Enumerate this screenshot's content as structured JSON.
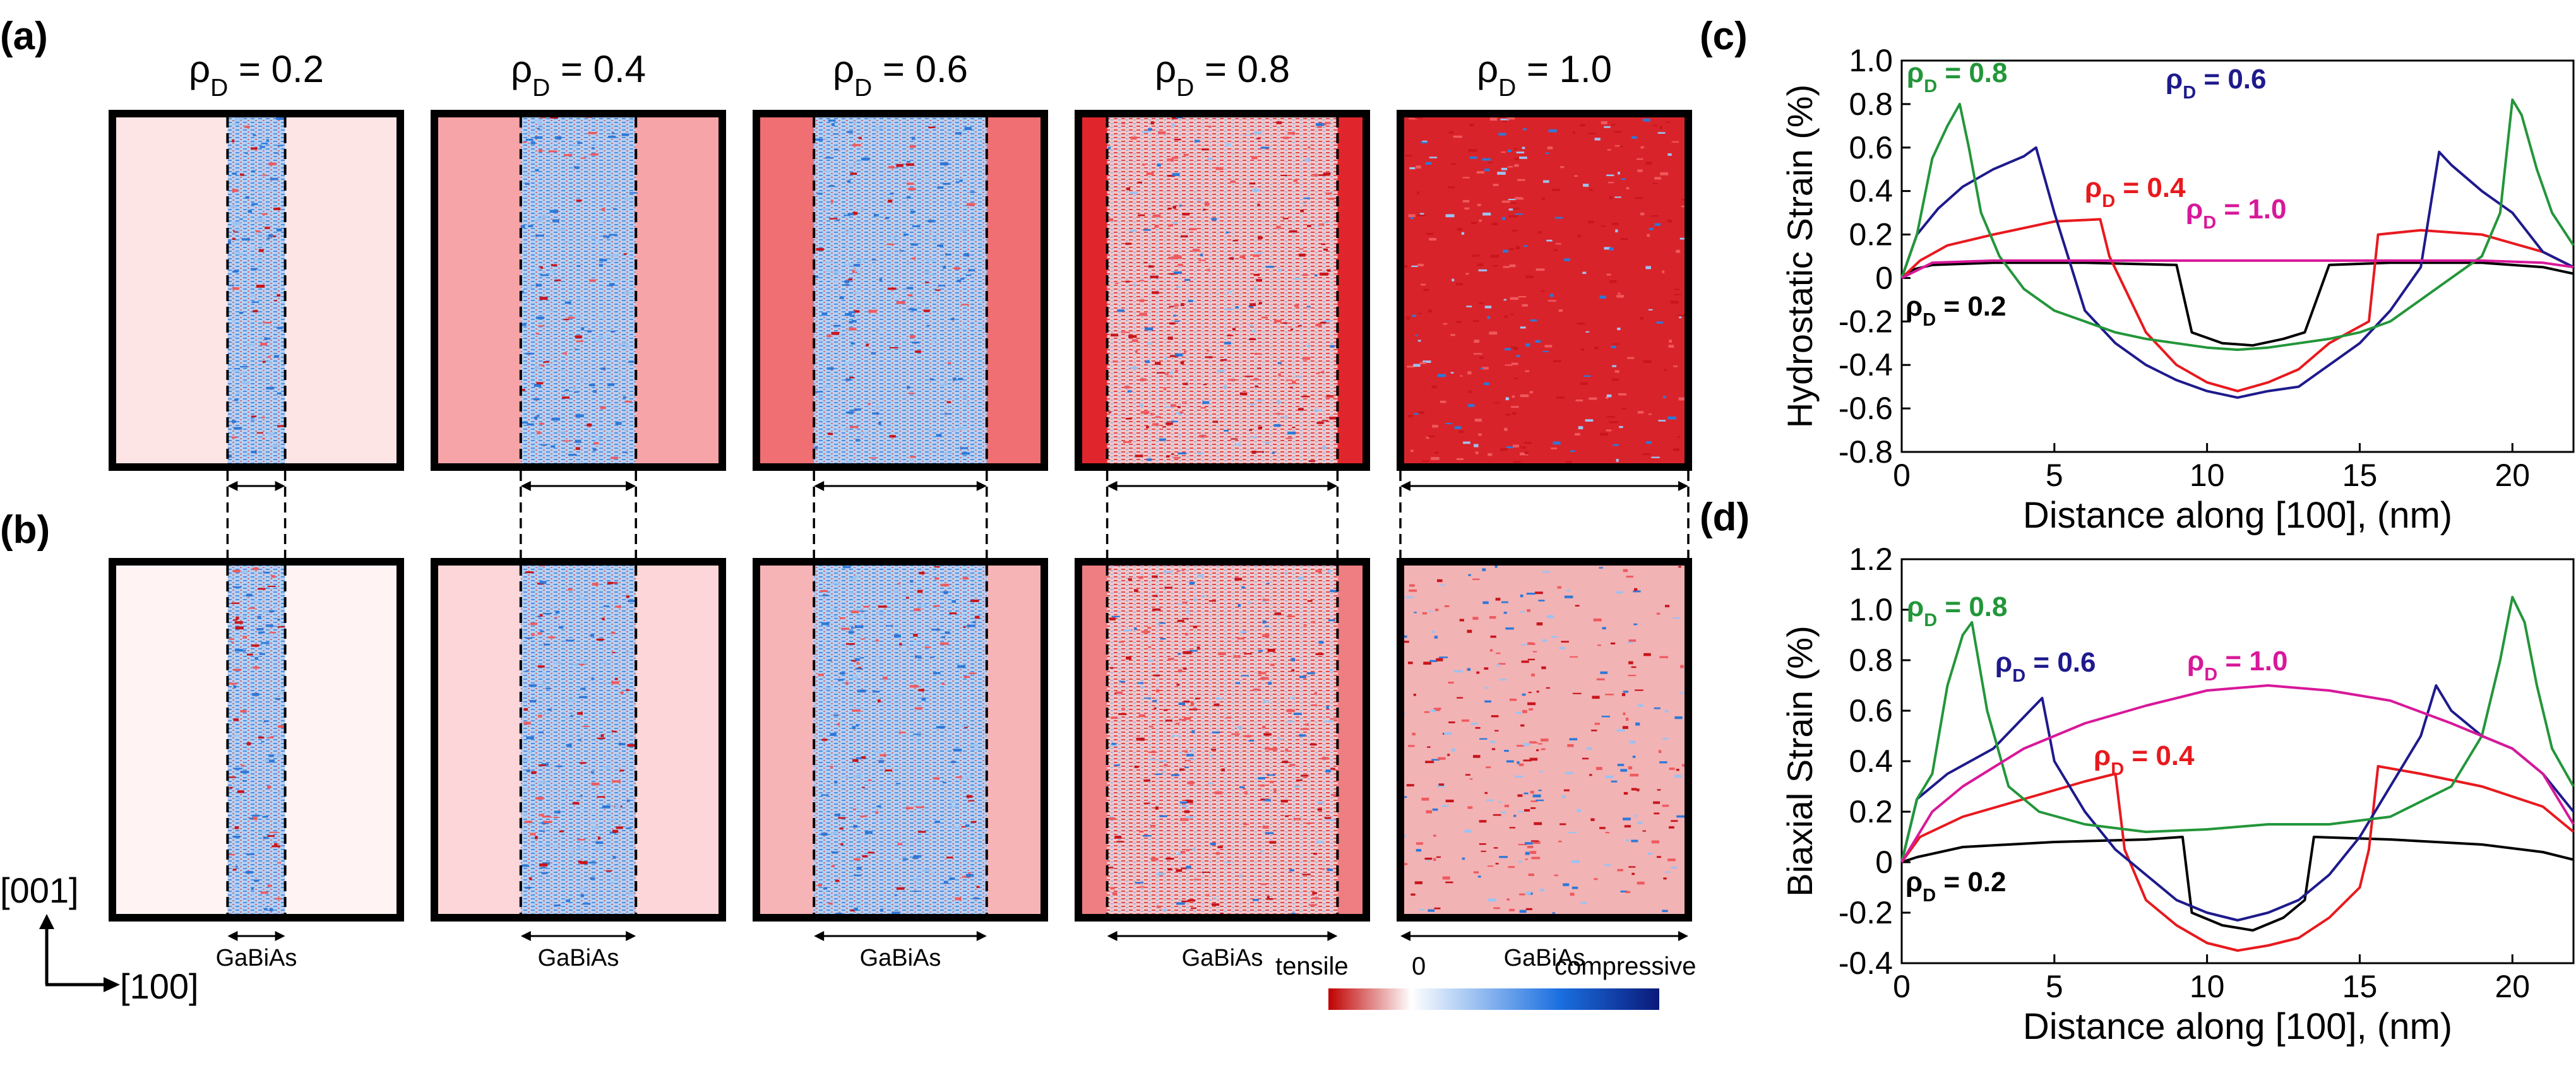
{
  "panel_labels": {
    "a": "(a)",
    "b": "(b)",
    "c": "(c)",
    "d": "(d)"
  },
  "rho_symbol": "ρ",
  "rho_subscript": "D",
  "region_label": "GaBiAs",
  "axes_labels": {
    "vertical": "[001]",
    "horizontal": "[100]"
  },
  "colorbar": {
    "tensile_label": "tensile",
    "zero_label": "0",
    "compressive_label": "compressive",
    "colors": [
      "#c00000",
      "#ffffff",
      "#1a6fe0",
      "#0a1a7a"
    ]
  },
  "maps": {
    "row_a": {
      "tag": "hydrostatic"
    },
    "row_b": {
      "tag": "biaxial"
    },
    "columns": [
      {
        "rho": "0.2",
        "title_value": "= 0.2",
        "gabias_fraction": 0.2,
        "bg_a": "#fde5e6",
        "bg_b": "#fff3f3"
      },
      {
        "rho": "0.4",
        "title_value": "= 0.4",
        "gabias_fraction": 0.4,
        "bg_a": "#f6a4a8",
        "bg_b": "#fcd6d8"
      },
      {
        "rho": "0.6",
        "title_value": "= 0.6",
        "gabias_fraction": 0.6,
        "bg_a": "#ef6f72",
        "bg_b": "#f7b4b7"
      },
      {
        "rho": "0.8",
        "title_value": "= 0.8",
        "gabias_fraction": 0.8,
        "bg_a": "#e0262c",
        "bg_b": "#ee7e82"
      },
      {
        "rho": "1.0",
        "title_value": "= 1.0",
        "gabias_fraction": 1.0,
        "bg_a": "#d11b20",
        "bg_b": "#ec8d90"
      }
    ]
  },
  "chart_data": [
    {
      "id": "c",
      "type": "line",
      "title": "",
      "xlabel": "Distance along [100], (nm)",
      "ylabel": "Hydrostatic Strain (%)",
      "xlim": [
        0,
        22
      ],
      "ylim": [
        -0.8,
        1.0
      ],
      "xticks": [
        0,
        5,
        10,
        15,
        20
      ],
      "yticks": [
        -0.8,
        -0.6,
        -0.4,
        -0.2,
        0,
        0.2,
        0.4,
        0.6,
        0.8,
        1.0
      ],
      "ytick_labels": [
        "-0.8",
        "-0.6",
        "-0.4",
        "-0.2",
        "0",
        "0.2",
        "0.4",
        "0.6",
        "0.8",
        "1.0"
      ],
      "series": [
        {
          "name": "ρD = 0.2",
          "label_value": " = 0.2",
          "color": "#000000",
          "x": [
            0,
            0.4,
            1,
            3,
            6,
            9,
            9.5,
            10.5,
            11.5,
            12.5,
            13.2,
            14,
            16,
            19,
            21,
            22
          ],
          "y": [
            0,
            0.04,
            0.06,
            0.07,
            0.07,
            0.06,
            -0.25,
            -0.3,
            -0.31,
            -0.28,
            -0.25,
            0.06,
            0.07,
            0.07,
            0.05,
            0.02
          ]
        },
        {
          "name": "ρD = 0.4",
          "label_value": " = 0.4",
          "color": "#e8191e",
          "x": [
            0,
            0.6,
            1.5,
            3,
            5,
            6.5,
            6.8,
            8,
            9,
            10,
            11,
            12,
            13,
            14,
            15.3,
            15.6,
            17,
            19,
            21,
            22
          ],
          "y": [
            0,
            0.08,
            0.15,
            0.2,
            0.26,
            0.27,
            0.1,
            -0.25,
            -0.4,
            -0.48,
            -0.52,
            -0.48,
            -0.42,
            -0.3,
            -0.2,
            0.2,
            0.22,
            0.2,
            0.12,
            0.05
          ]
        },
        {
          "name": "ρD = 0.6",
          "label_value": " = 0.6",
          "color": "#1e1a8c",
          "x": [
            0,
            0.5,
            1.2,
            2,
            3,
            4,
            4.4,
            5,
            6,
            7,
            8,
            9,
            10,
            11,
            12,
            13,
            14,
            15,
            16,
            17,
            17.6,
            18,
            19,
            20,
            21,
            22
          ],
          "y": [
            0,
            0.2,
            0.32,
            0.42,
            0.5,
            0.56,
            0.6,
            0.3,
            -0.15,
            -0.3,
            -0.4,
            -0.47,
            -0.52,
            -0.55,
            -0.52,
            -0.5,
            -0.4,
            -0.3,
            -0.15,
            0.05,
            0.58,
            0.52,
            0.4,
            0.3,
            0.12,
            0.05
          ]
        },
        {
          "name": "ρD = 0.8",
          "label_value": " = 0.8",
          "color": "#23963a",
          "x": [
            0,
            0.5,
            1,
            1.5,
            1.9,
            2.2,
            2.6,
            3.2,
            4,
            5,
            6,
            7,
            8,
            9,
            10,
            11,
            12,
            13,
            14,
            15,
            16,
            17,
            18,
            19,
            19.6,
            20,
            20.3,
            20.8,
            21.3,
            22
          ],
          "y": [
            0,
            0.2,
            0.55,
            0.7,
            0.8,
            0.6,
            0.3,
            0.1,
            -0.05,
            -0.15,
            -0.2,
            -0.25,
            -0.28,
            -0.3,
            -0.32,
            -0.33,
            -0.32,
            -0.3,
            -0.28,
            -0.25,
            -0.2,
            -0.1,
            0.0,
            0.1,
            0.3,
            0.82,
            0.75,
            0.5,
            0.3,
            0.15
          ]
        },
        {
          "name": "ρD = 1.0",
          "label_value": " = 1.0",
          "color": "#d8189a",
          "x": [
            0,
            1,
            3,
            5,
            7,
            9,
            11,
            13,
            15,
            17,
            19,
            21,
            22
          ],
          "y": [
            0,
            0.07,
            0.08,
            0.08,
            0.08,
            0.08,
            0.08,
            0.08,
            0.08,
            0.08,
            0.08,
            0.07,
            0.05
          ]
        }
      ]
    },
    {
      "id": "d",
      "type": "line",
      "title": "",
      "xlabel": "Distance along [100], (nm)",
      "ylabel": "Biaxial Strain (%)",
      "xlim": [
        0,
        22
      ],
      "ylim": [
        -0.4,
        1.2
      ],
      "xticks": [
        0,
        5,
        10,
        15,
        20
      ],
      "yticks": [
        -0.4,
        -0.2,
        0,
        0.2,
        0.4,
        0.6,
        0.8,
        1.0,
        1.2
      ],
      "ytick_labels": [
        "-0.4",
        "-0.2",
        "0",
        "0.2",
        "0.4",
        "0.6",
        "0.8",
        "1.0",
        "1.2"
      ],
      "series": [
        {
          "name": "ρD = 0.2",
          "label_value": " = 0.2",
          "color": "#000000",
          "x": [
            0,
            0.5,
            2,
            5,
            8,
            9.2,
            9.5,
            10.5,
            11.5,
            12.5,
            13.2,
            13.5,
            16,
            19,
            21,
            22
          ],
          "y": [
            0,
            0.02,
            0.06,
            0.08,
            0.09,
            0.1,
            -0.2,
            -0.25,
            -0.27,
            -0.22,
            -0.15,
            0.1,
            0.09,
            0.07,
            0.04,
            0.01
          ]
        },
        {
          "name": "ρD = 0.4",
          "label_value": " = 0.4",
          "color": "#e8191e",
          "x": [
            0,
            0.6,
            2,
            4,
            6,
            7,
            7.3,
            8,
            9,
            10,
            11,
            12,
            13,
            14,
            15,
            15.3,
            15.6,
            17,
            19,
            21,
            22
          ],
          "y": [
            0,
            0.1,
            0.18,
            0.25,
            0.32,
            0.35,
            0.05,
            -0.15,
            -0.25,
            -0.32,
            -0.35,
            -0.33,
            -0.3,
            -0.22,
            -0.1,
            0.05,
            0.38,
            0.35,
            0.3,
            0.22,
            0.12
          ]
        },
        {
          "name": "ρD = 0.6",
          "label_value": " = 0.6",
          "color": "#1e1a8c",
          "x": [
            0,
            0.5,
            1.5,
            3,
            4.2,
            4.6,
            5,
            6,
            7,
            8,
            9,
            10,
            11,
            12,
            13,
            14,
            15,
            16,
            17,
            17.5,
            18,
            19,
            20,
            21,
            22
          ],
          "y": [
            0,
            0.25,
            0.35,
            0.45,
            0.6,
            0.65,
            0.4,
            0.2,
            0.05,
            -0.05,
            -0.15,
            -0.2,
            -0.23,
            -0.2,
            -0.15,
            -0.05,
            0.1,
            0.3,
            0.5,
            0.7,
            0.6,
            0.5,
            0.45,
            0.35,
            0.2
          ]
        },
        {
          "name": "ρD = 0.8",
          "label_value": " = 0.8",
          "color": "#23963a",
          "x": [
            0,
            0.5,
            1,
            1.5,
            2,
            2.3,
            2.8,
            3.5,
            4.5,
            6,
            8,
            10,
            12,
            14,
            16,
            18,
            19,
            19.6,
            20,
            20.4,
            20.8,
            21.3,
            22
          ],
          "y": [
            0,
            0.25,
            0.35,
            0.7,
            0.9,
            0.95,
            0.6,
            0.3,
            0.2,
            0.15,
            0.12,
            0.13,
            0.15,
            0.15,
            0.18,
            0.3,
            0.5,
            0.8,
            1.05,
            0.95,
            0.7,
            0.45,
            0.3
          ]
        },
        {
          "name": "ρD = 1.0",
          "label_value": " = 1.0",
          "color": "#d8189a",
          "x": [
            0,
            1,
            2,
            4,
            6,
            8,
            10,
            12,
            14,
            16,
            18,
            20,
            21,
            22
          ],
          "y": [
            0,
            0.2,
            0.3,
            0.45,
            0.55,
            0.62,
            0.68,
            0.7,
            0.68,
            0.64,
            0.55,
            0.45,
            0.35,
            0.15
          ]
        }
      ]
    }
  ]
}
